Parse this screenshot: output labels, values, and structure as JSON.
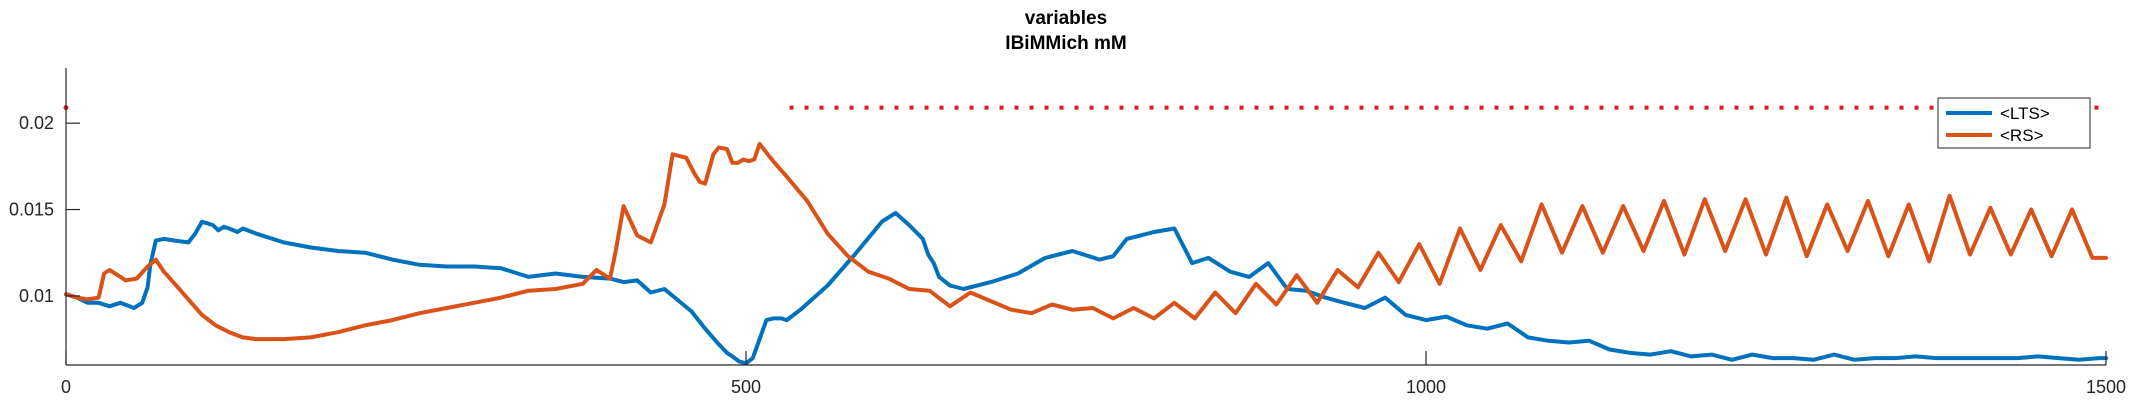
{
  "chart_data": {
    "type": "line",
    "title": "variables",
    "subtitle": "IBiMMich mM",
    "xlabel": "",
    "ylabel": "",
    "xlim": [
      0,
      1500
    ],
    "ylim": [
      0.006,
      0.0225
    ],
    "xticks": [
      0,
      500,
      1000,
      1500
    ],
    "xtick_labels": [
      "0",
      "500",
      "1000",
      "1500"
    ],
    "yticks": [
      0.01,
      0.015,
      0.02
    ],
    "ytick_labels": [
      "0.01",
      "0.015",
      "0.02"
    ],
    "grid": false,
    "legend": "top-right",
    "reference_line": {
      "y": 0.0209,
      "style": "dotted",
      "color": "#e31a1c"
    },
    "series": [
      {
        "name": "<LTS>",
        "color": "#0072bd",
        "x": [
          0,
          8,
          16,
          24,
          32,
          40,
          50,
          56,
          60,
          62,
          66,
          72,
          80,
          90,
          95,
          100,
          108,
          112,
          116,
          120,
          126,
          130,
          140,
          160,
          180,
          200,
          220,
          240,
          260,
          280,
          300,
          320,
          340,
          360,
          380,
          400,
          410,
          420,
          430,
          440,
          460,
          470,
          480,
          486,
          490,
          495,
          500,
          505,
          510,
          515,
          520,
          526,
          530,
          540,
          560,
          580,
          600,
          610,
          620,
          630,
          634,
          638,
          642,
          650,
          660,
          680,
          700,
          720,
          740,
          760,
          770,
          780,
          790,
          800,
          815,
          828,
          840,
          856,
          870,
          884,
          898,
          912,
          926,
          940,
          955,
          970,
          985,
          1000,
          1015,
          1030,
          1045,
          1060,
          1075,
          1090,
          1105,
          1120,
          1135,
          1150,
          1165,
          1180,
          1195,
          1210,
          1225,
          1240,
          1255,
          1270,
          1285,
          1300,
          1315,
          1330,
          1345,
          1360,
          1375,
          1390,
          1405,
          1420,
          1435,
          1450,
          1465,
          1480,
          1495,
          1500
        ],
        "values": [
          0.0101,
          0.0099,
          0.0096,
          0.0096,
          0.0094,
          0.0096,
          0.0093,
          0.0096,
          0.0105,
          0.0118,
          0.0132,
          0.0133,
          0.0132,
          0.0131,
          0.0136,
          0.0143,
          0.0141,
          0.0138,
          0.014,
          0.0139,
          0.0137,
          0.0139,
          0.0136,
          0.0131,
          0.0128,
          0.0126,
          0.0125,
          0.0121,
          0.0118,
          0.0117,
          0.0117,
          0.0116,
          0.0111,
          0.0113,
          0.0111,
          0.011,
          0.0108,
          0.0109,
          0.0102,
          0.0104,
          0.0091,
          0.0081,
          0.0072,
          0.0067,
          0.0065,
          0.0062,
          0.0061,
          0.0064,
          0.0075,
          0.0086,
          0.0087,
          0.0087,
          0.0086,
          0.0092,
          0.0106,
          0.0124,
          0.0143,
          0.0148,
          0.0141,
          0.0133,
          0.0124,
          0.0119,
          0.0111,
          0.0106,
          0.0104,
          0.0108,
          0.0113,
          0.0122,
          0.0126,
          0.0121,
          0.0123,
          0.0133,
          0.0135,
          0.0137,
          0.0139,
          0.0119,
          0.0122,
          0.0114,
          0.0111,
          0.0119,
          0.0104,
          0.0103,
          0.0099,
          0.0096,
          0.0093,
          0.0099,
          0.0089,
          0.0086,
          0.0088,
          0.0083,
          0.0081,
          0.0084,
          0.0076,
          0.0074,
          0.0073,
          0.0074,
          0.0069,
          0.0067,
          0.0066,
          0.0068,
          0.0065,
          0.0066,
          0.0063,
          0.0066,
          0.0064,
          0.0064,
          0.0063,
          0.0066,
          0.0063,
          0.0064,
          0.0064,
          0.0065,
          0.0064,
          0.0064,
          0.0064,
          0.0064,
          0.0064,
          0.0065,
          0.0064,
          0.0063,
          0.0064,
          0.0064
        ]
      },
      {
        "name": "<RS>",
        "color": "#d95319",
        "x": [
          0,
          8,
          16,
          24,
          28,
          32,
          38,
          44,
          52,
          60,
          66,
          72,
          80,
          90,
          100,
          110,
          120,
          130,
          140,
          160,
          180,
          200,
          220,
          240,
          260,
          280,
          300,
          320,
          340,
          360,
          380,
          390,
          396,
          400,
          404,
          410,
          420,
          430,
          440,
          446,
          456,
          462,
          466,
          470,
          476,
          480,
          486,
          490,
          494,
          498,
          502,
          506,
          510,
          520,
          530,
          545,
          560,
          575,
          590,
          605,
          620,
          635,
          650,
          665,
          680,
          695,
          710,
          725,
          740,
          755,
          770,
          785,
          800,
          815,
          830,
          845,
          860,
          875,
          890,
          905,
          920,
          935,
          950,
          965,
          980,
          995,
          1010,
          1025,
          1040,
          1055,
          1070,
          1085,
          1100,
          1115,
          1130,
          1145,
          1160,
          1175,
          1190,
          1205,
          1220,
          1235,
          1250,
          1265,
          1280,
          1295,
          1310,
          1325,
          1340,
          1355,
          1370,
          1385,
          1400,
          1415,
          1430,
          1445,
          1460,
          1475,
          1490,
          1500
        ],
        "values": [
          0.0101,
          0.0099,
          0.0098,
          0.0099,
          0.0113,
          0.0115,
          0.0112,
          0.0109,
          0.011,
          0.0117,
          0.0121,
          0.0114,
          0.0107,
          0.0098,
          0.0089,
          0.0083,
          0.0079,
          0.0076,
          0.0075,
          0.0075,
          0.0076,
          0.0079,
          0.0083,
          0.0086,
          0.009,
          0.0093,
          0.0096,
          0.0099,
          0.0103,
          0.0104,
          0.0107,
          0.0115,
          0.0112,
          0.011,
          0.0125,
          0.0152,
          0.0135,
          0.0131,
          0.0153,
          0.0182,
          0.018,
          0.0171,
          0.0166,
          0.0165,
          0.0182,
          0.0186,
          0.0185,
          0.0177,
          0.0177,
          0.0179,
          0.0178,
          0.0179,
          0.0188,
          0.0178,
          0.0169,
          0.0155,
          0.0136,
          0.0123,
          0.0114,
          0.011,
          0.0104,
          0.0103,
          0.0094,
          0.0102,
          0.0097,
          0.0092,
          0.009,
          0.0095,
          0.0092,
          0.0093,
          0.0087,
          0.0093,
          0.0087,
          0.0096,
          0.0087,
          0.0102,
          0.009,
          0.0107,
          0.0095,
          0.0112,
          0.0096,
          0.0115,
          0.0105,
          0.0125,
          0.0108,
          0.013,
          0.0107,
          0.0139,
          0.0115,
          0.0141,
          0.012,
          0.0153,
          0.0125,
          0.0152,
          0.0125,
          0.0152,
          0.0126,
          0.0155,
          0.0124,
          0.0156,
          0.0126,
          0.0156,
          0.0124,
          0.0157,
          0.0123,
          0.0153,
          0.0126,
          0.0155,
          0.0123,
          0.0153,
          0.012,
          0.0158,
          0.0124,
          0.0151,
          0.0124,
          0.015,
          0.0123,
          0.015,
          0.0122,
          0.0122
        ]
      }
    ]
  }
}
